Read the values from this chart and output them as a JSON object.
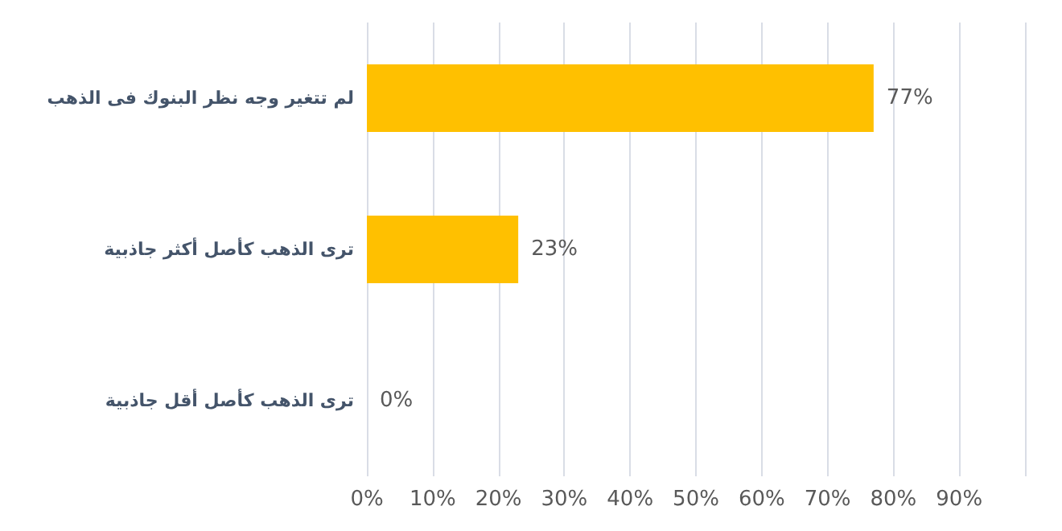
{
  "chart_data": {
    "type": "bar",
    "orientation": "horizontal",
    "categories": [
      "لم تتغير وجه نظر البنوك فى الذهب",
      "ترى الذهب كأصل أكثر جاذبية",
      "ترى الذهب كأصل أقل جاذبية"
    ],
    "values": [
      77,
      23,
      0
    ],
    "color": "#ffc000",
    "value_labels": [
      "77%",
      "23%",
      "0%"
    ],
    "xlim": [
      0,
      100
    ],
    "xticks": [
      {
        "value": 0,
        "label": "0%"
      },
      {
        "value": 10,
        "label": "10%"
      },
      {
        "value": 20,
        "label": "20%"
      },
      {
        "value": 30,
        "label": "30%"
      },
      {
        "value": 40,
        "label": "40%"
      },
      {
        "value": 50,
        "label": "50%"
      },
      {
        "value": 60,
        "label": "60%"
      },
      {
        "value": 70,
        "label": "70%"
      },
      {
        "value": 80,
        "label": "80%"
      },
      {
        "value": 90,
        "label": "90%"
      },
      {
        "value": 100,
        "label": null
      }
    ],
    "grid": "x"
  }
}
